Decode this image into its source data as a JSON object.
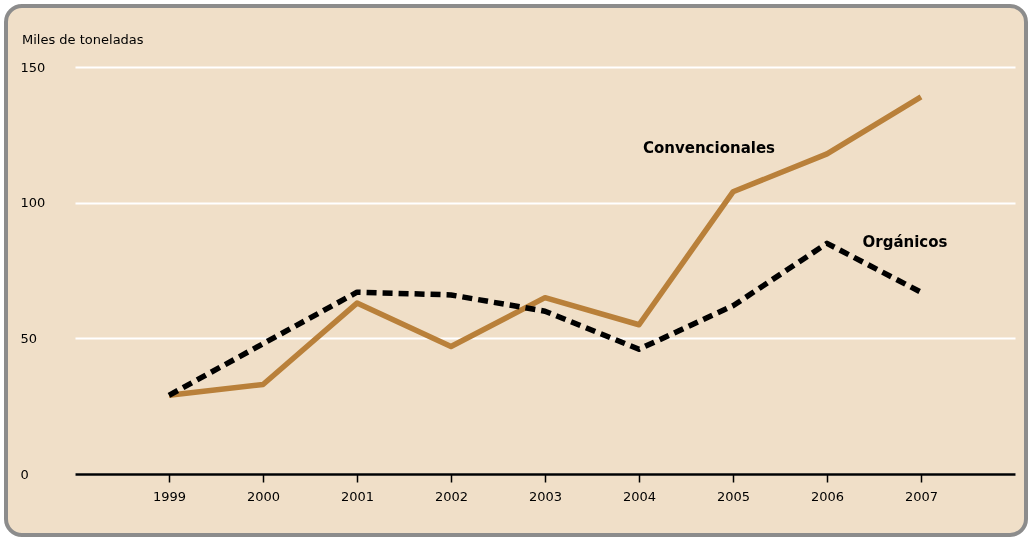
{
  "chart_data": {
    "type": "line",
    "ylabel": "Miles de toneladas",
    "categories": [
      "1999",
      "2000",
      "2001",
      "2002",
      "2003",
      "2004",
      "2005",
      "2006",
      "2007"
    ],
    "series": [
      {
        "name": "Convencionales",
        "color": "#b9803a",
        "line_style": "solid",
        "values": [
          29,
          33,
          63,
          47,
          65,
          55,
          104,
          118,
          139
        ]
      },
      {
        "name": "Orgánicos",
        "color": "#000000",
        "line_style": "dashed",
        "values": [
          29,
          48,
          67,
          66,
          60,
          46,
          62,
          85,
          67
        ]
      }
    ],
    "ylim": [
      0,
      150
    ],
    "yticks": [
      0,
      50,
      100,
      150
    ],
    "grid": "y"
  }
}
